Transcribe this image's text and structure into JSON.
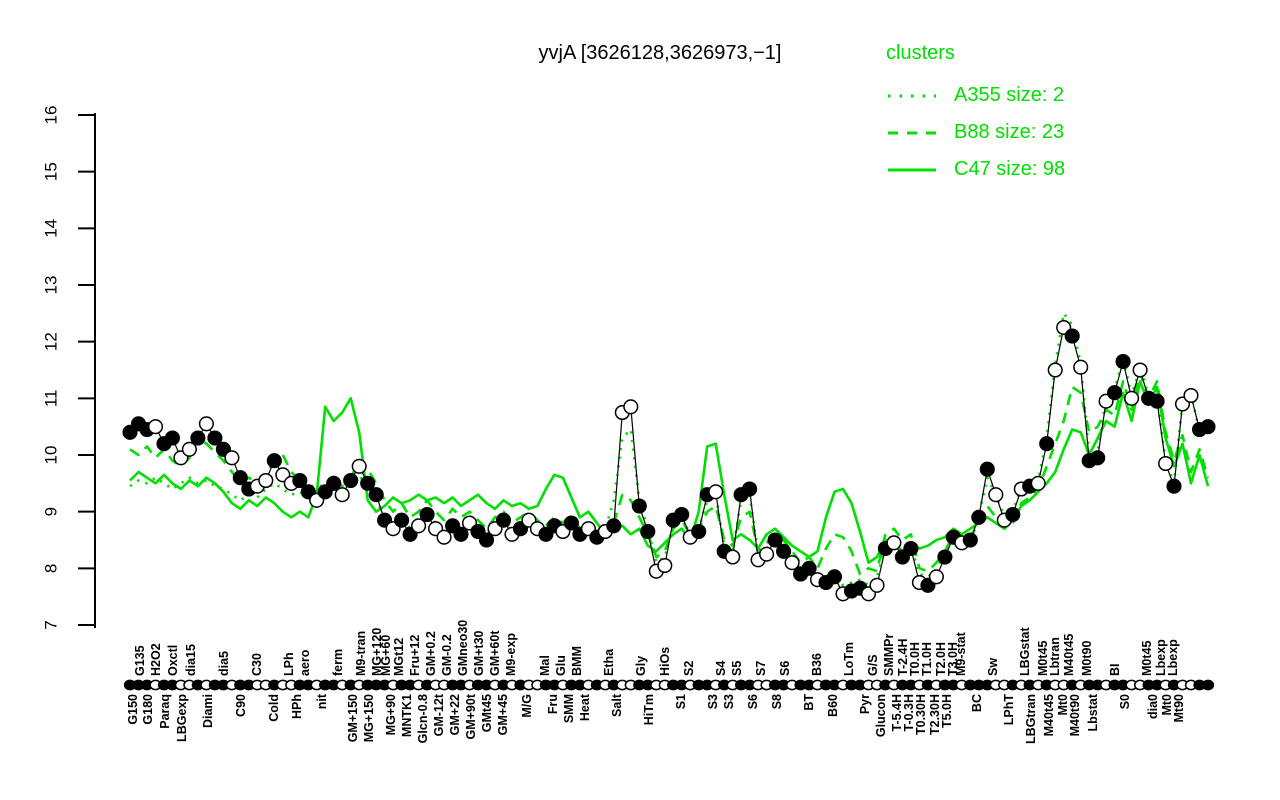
{
  "title": "yvjA [3626128,3626973,−1]",
  "legend": {
    "title": "clusters",
    "items": [
      {
        "label": "A355 size: 2",
        "line_style": "dotted"
      },
      {
        "label": "B88 size: 23",
        "line_style": "dashed"
      },
      {
        "label": "C47 size: 98",
        "line_style": "solid"
      }
    ]
  },
  "colors": {
    "cluster_green": "#00e000",
    "points_black": "#000000",
    "background": "#ffffff"
  },
  "chart_data": {
    "type": "line",
    "title": "yvjA [3626128,3626973,−1]",
    "xlabel": "",
    "ylabel": "",
    "ylim": [
      7,
      16
    ],
    "y_ticks": [
      7,
      8,
      9,
      10,
      11,
      12,
      13,
      14,
      15,
      16
    ],
    "grid": false,
    "legend_position": "top-right",
    "series": [
      {
        "name": "C47",
        "role": "cluster-mean",
        "color": "#00e000",
        "dash": "solid",
        "width": 2.6,
        "values": [
          9.55,
          9.7,
          9.6,
          9.5,
          9.65,
          9.5,
          9.4,
          9.55,
          9.45,
          9.6,
          9.5,
          9.35,
          9.15,
          9.05,
          9.2,
          9.1,
          9.25,
          9.15,
          9.0,
          8.9,
          9.0,
          8.9,
          9.3,
          10.85,
          10.6,
          10.75,
          11.0,
          10.4,
          9.2,
          9.0,
          9.1,
          9.25,
          9.15,
          9.2,
          9.3,
          9.2,
          9.25,
          9.15,
          9.25,
          9.1,
          9.2,
          9.3,
          9.15,
          9.05,
          9.2,
          9.1,
          9.15,
          9.05,
          9.1,
          9.4,
          9.65,
          9.6,
          9.25,
          8.9,
          9.0,
          8.8,
          8.6,
          8.7,
          8.75,
          8.6,
          8.7,
          8.4,
          8.3,
          8.45,
          8.6,
          8.7,
          8.5,
          9.0,
          10.15,
          10.2,
          9.3,
          8.5,
          8.6,
          8.5,
          8.35,
          8.6,
          8.7,
          8.55,
          8.4,
          8.3,
          8.2,
          8.3,
          8.9,
          9.35,
          9.4,
          9.15,
          8.65,
          8.1,
          8.2,
          8.5,
          8.45,
          8.3,
          8.45,
          8.35,
          8.4,
          8.5,
          8.55,
          8.7,
          8.6,
          8.7,
          8.8,
          8.9,
          8.8,
          8.7,
          8.85,
          9.1,
          9.2,
          9.35,
          9.5,
          9.7,
          10.1,
          10.45,
          10.4,
          10.0,
          10.3,
          10.6,
          10.5,
          11.1,
          10.6,
          11.3,
          10.9,
          11.2,
          10.3,
          9.8,
          10.2,
          9.5,
          10.0,
          9.45
        ]
      },
      {
        "name": "B88",
        "role": "cluster-mean",
        "color": "#00e000",
        "dash": "dashed",
        "width": 2.6,
        "values": [
          10.1,
          10.0,
          10.15,
          9.95,
          10.1,
          9.9,
          9.8,
          9.95,
          10.3,
          10.2,
          10.05,
          9.9,
          9.7,
          9.5,
          9.6,
          9.5,
          9.65,
          9.9,
          10.0,
          9.7,
          9.55,
          9.4,
          9.5,
          9.4,
          9.55,
          9.45,
          9.6,
          9.9,
          9.75,
          9.5,
          9.2,
          9.0,
          9.15,
          8.9,
          9.0,
          9.2,
          9.0,
          8.85,
          9.05,
          8.9,
          9.0,
          8.85,
          8.7,
          8.9,
          9.0,
          8.8,
          8.9,
          9.0,
          8.85,
          8.75,
          8.9,
          8.8,
          8.95,
          8.7,
          8.8,
          8.6,
          8.7,
          8.8,
          9.3,
          9.2,
          8.9,
          8.6,
          8.2,
          8.3,
          8.7,
          8.85,
          8.6,
          8.7,
          9.0,
          9.1,
          8.5,
          8.4,
          8.9,
          9.0,
          8.3,
          8.45,
          8.6,
          8.5,
          8.3,
          8.1,
          8.2,
          8.0,
          8.35,
          8.6,
          8.55,
          8.3,
          7.9,
          8.0,
          7.95,
          8.6,
          8.7,
          8.5,
          8.6,
          8.0,
          7.95,
          8.1,
          8.3,
          8.6,
          8.5,
          8.55,
          8.8,
          9.1,
          8.9,
          8.7,
          8.8,
          9.15,
          9.25,
          9.4,
          9.8,
          10.2,
          10.6,
          11.2,
          11.1,
          10.4,
          10.5,
          10.8,
          10.7,
          11.3,
          10.8,
          11.45,
          11.0,
          11.3,
          10.4,
          9.9,
          10.35,
          9.7,
          10.1,
          9.6
        ]
      },
      {
        "name": "A355",
        "role": "cluster-mean",
        "color": "#00e000",
        "dash": "dotted",
        "width": 2.6,
        "values": [
          9.45,
          9.55,
          9.5,
          9.6,
          9.5,
          9.4,
          9.5,
          9.6,
          9.5,
          9.55,
          9.45,
          9.4,
          9.3,
          9.2,
          9.3,
          9.25,
          9.4,
          9.5,
          9.4,
          9.3,
          9.35,
          9.25,
          9.3,
          9.5,
          9.6,
          9.45,
          9.55,
          9.65,
          9.4,
          9.2,
          8.9,
          8.8,
          8.9,
          8.7,
          8.8,
          8.95,
          8.8,
          8.7,
          8.85,
          8.7,
          8.8,
          8.7,
          8.6,
          8.75,
          8.85,
          8.7,
          8.75,
          8.85,
          8.75,
          8.7,
          8.8,
          8.7,
          8.85,
          8.7,
          8.75,
          8.6,
          8.7,
          9.2,
          10.3,
          10.45,
          9.2,
          8.7,
          8.1,
          8.2,
          8.8,
          8.9,
          8.6,
          8.7,
          9.2,
          9.3,
          8.4,
          8.3,
          9.2,
          9.3,
          8.25,
          8.35,
          8.55,
          8.4,
          8.2,
          8.0,
          8.1,
          7.9,
          7.85,
          7.95,
          7.7,
          7.75,
          7.8,
          7.7,
          7.85,
          8.4,
          8.5,
          8.3,
          8.4,
          7.9,
          7.85,
          7.95,
          8.3,
          8.6,
          8.5,
          8.55,
          8.95,
          9.6,
          9.3,
          8.9,
          9.0,
          9.45,
          9.5,
          9.55,
          10.3,
          11.6,
          12.5,
          12.3,
          11.6,
          10.0,
          10.05,
          11.0,
          11.15,
          11.7,
          11.05,
          11.55,
          11.05,
          11.0,
          9.9,
          9.5,
          10.95,
          11.1,
          10.4,
          10.3
        ]
      },
      {
        "name": "expression",
        "role": "gene-points",
        "color": "#000000",
        "dash": "solid",
        "width": 1.2,
        "points": true,
        "values": [
          10.4,
          10.55,
          10.45,
          10.5,
          10.2,
          10.3,
          9.95,
          10.1,
          10.3,
          10.55,
          10.3,
          10.1,
          9.95,
          9.6,
          9.4,
          9.45,
          9.55,
          9.9,
          9.65,
          9.5,
          9.55,
          9.35,
          9.2,
          9.35,
          9.5,
          9.3,
          9.55,
          9.8,
          9.5,
          9.3,
          8.85,
          8.7,
          8.85,
          8.6,
          8.75,
          8.95,
          8.7,
          8.55,
          8.75,
          8.6,
          8.8,
          8.65,
          8.5,
          8.7,
          8.85,
          8.6,
          8.7,
          8.85,
          8.7,
          8.6,
          8.75,
          8.65,
          8.8,
          8.6,
          8.7,
          8.55,
          8.65,
          8.75,
          10.75,
          10.85,
          9.1,
          8.65,
          7.95,
          8.05,
          8.85,
          8.95,
          8.55,
          8.65,
          9.3,
          9.35,
          8.3,
          8.2,
          9.3,
          9.4,
          8.15,
          8.25,
          8.5,
          8.3,
          8.1,
          7.9,
          8.0,
          7.8,
          7.75,
          7.85,
          7.55,
          7.6,
          7.65,
          7.55,
          7.7,
          8.35,
          8.45,
          8.2,
          8.35,
          7.75,
          7.7,
          7.85,
          8.2,
          8.55,
          8.45,
          8.5,
          8.9,
          9.75,
          9.3,
          8.85,
          8.95,
          9.4,
          9.45,
          9.5,
          10.2,
          11.5,
          12.25,
          12.1,
          11.55,
          9.9,
          9.95,
          10.95,
          11.1,
          11.65,
          11.0,
          11.5,
          11.0,
          10.95,
          9.85,
          9.45,
          10.9,
          11.05,
          10.45,
          10.5
        ]
      }
    ],
    "point_fills": [
      1,
      1,
      1,
      0,
      1,
      1,
      0,
      0,
      1,
      0,
      1,
      1,
      0,
      1,
      1,
      0,
      0,
      1,
      0,
      0,
      1,
      1,
      0,
      1,
      1,
      0,
      1,
      0,
      1,
      1,
      1,
      0,
      1,
      1,
      0,
      1,
      0,
      0,
      1,
      1,
      0,
      1,
      1,
      0,
      1,
      0,
      1,
      0,
      0,
      1,
      1,
      0,
      1,
      1,
      0,
      1,
      0,
      1,
      0,
      0,
      1,
      1,
      0,
      0,
      1,
      1,
      0,
      1,
      1,
      0,
      1,
      0,
      1,
      1,
      0,
      0,
      1,
      1,
      0,
      1,
      1,
      0,
      1,
      1,
      0,
      1,
      1,
      0,
      0,
      1,
      0,
      1,
      1,
      0,
      1,
      0,
      1,
      1,
      0,
      1,
      1,
      1,
      0,
      0,
      1,
      0,
      1,
      0,
      1,
      0,
      0,
      1,
      0,
      1,
      1,
      0,
      1,
      1,
      0,
      0,
      1,
      1,
      0,
      1,
      0,
      0,
      1,
      1
    ],
    "x_labels": [
      [
        "G150",
        "b",
        137
      ],
      [
        "G135",
        "t",
        144
      ],
      [
        "G180",
        "b",
        152
      ],
      [
        "H2O2",
        "t",
        160
      ],
      [
        "Paraq",
        "b",
        169
      ],
      [
        "Oxctl",
        "t",
        177
      ],
      [
        "LBGexp",
        "b",
        186
      ],
      [
        "dia15",
        "t",
        195
      ],
      [
        "Diami",
        "b",
        212
      ],
      [
        "dia5",
        "t",
        228
      ],
      [
        "C90",
        "b",
        245
      ],
      [
        "C30",
        "t",
        261
      ],
      [
        "Cold",
        "b",
        278
      ],
      [
        "LPh",
        "t",
        293
      ],
      [
        "HPh",
        "b",
        301
      ],
      [
        "aero",
        "t",
        309
      ],
      [
        "nit",
        "b",
        326
      ],
      [
        "ferm",
        "t",
        342
      ],
      [
        "GM+150",
        "b",
        357
      ],
      [
        "M9-tran",
        "t",
        365
      ],
      [
        "MG+150",
        "b",
        373
      ],
      [
        "MG+120",
        "t",
        381
      ],
      [
        "MG+60",
        "t",
        390
      ],
      [
        "MG+90",
        "b",
        395
      ],
      [
        "MGt12",
        "t",
        403
      ],
      [
        "MNTK1",
        "b",
        411
      ],
      [
        "Fru+12",
        "t",
        419
      ],
      [
        "Glcn-0.8",
        "b",
        427
      ],
      [
        "GM+0.2",
        "t",
        435
      ],
      [
        "GM-12t",
        "b",
        443
      ],
      [
        "GM-0.2",
        "t",
        451
      ],
      [
        "GM+22",
        "b",
        459
      ],
      [
        "GMneo30",
        "t",
        467
      ],
      [
        "GM+90t",
        "b",
        475
      ],
      [
        "GM+t30",
        "t",
        483
      ],
      [
        "GMt45",
        "b",
        491
      ],
      [
        "GM+60t",
        "t",
        499
      ],
      [
        "GM+45",
        "b",
        507
      ],
      [
        "M9-exp",
        "t",
        515
      ],
      [
        "M/G",
        "b",
        531
      ],
      [
        "Mal",
        "t",
        549
      ],
      [
        "Fru",
        "b",
        557
      ],
      [
        "Glu",
        "t",
        565
      ],
      [
        "SMM",
        "b",
        573
      ],
      [
        "BMM",
        "t",
        581
      ],
      [
        "Heat",
        "b",
        589
      ],
      [
        "Etha",
        "t",
        613
      ],
      [
        "Salt",
        "b",
        621
      ],
      [
        "Gly",
        "t",
        645
      ],
      [
        "HiTm",
        "b",
        653
      ],
      [
        "HiOs",
        "t",
        669
      ],
      [
        "S1",
        "b",
        685
      ],
      [
        "S2",
        "t",
        693
      ],
      [
        "S3",
        "b",
        717
      ],
      [
        "S4",
        "t",
        725
      ],
      [
        "S3",
        "b",
        733
      ],
      [
        "S5",
        "t",
        741
      ],
      [
        "S6",
        "b",
        757
      ],
      [
        "S7",
        "t",
        765
      ],
      [
        "S8",
        "b",
        781
      ],
      [
        "S6",
        "t",
        789
      ],
      [
        "BT",
        "b",
        813
      ],
      [
        "B36",
        "t",
        821
      ],
      [
        "B60",
        "b",
        837
      ],
      [
        "LoTm",
        "t",
        853
      ],
      [
        "Pyr",
        "b",
        869
      ],
      [
        "G/S",
        "t",
        877
      ],
      [
        "Glucon",
        "b",
        885
      ],
      [
        "SMMPr",
        "t",
        893
      ],
      [
        "T-5.4H",
        "b",
        901
      ],
      [
        "T-2.4H",
        "t",
        907
      ],
      [
        "T-0.3H",
        "b",
        913
      ],
      [
        "T0.0H",
        "t",
        919
      ],
      [
        "T0.30H",
        "b",
        925
      ],
      [
        "T1.0H",
        "t",
        931
      ],
      [
        "T2.30H",
        "b",
        939
      ],
      [
        "T2.0H",
        "t",
        945
      ],
      [
        "T5.0H",
        "b",
        951
      ],
      [
        "T3.0H",
        "t",
        957
      ],
      [
        "M9-stat",
        "t",
        965
      ],
      [
        "BC",
        "b",
        981
      ],
      [
        "Sw",
        "t",
        997
      ],
      [
        "LPhT",
        "b",
        1013
      ],
      [
        "LBGstat",
        "t",
        1029
      ],
      [
        "LBGtran",
        "b",
        1035
      ],
      [
        "M0t45",
        "t",
        1047
      ],
      [
        "M40t45",
        "b",
        1053
      ],
      [
        "Lbtran",
        "t",
        1059
      ],
      [
        "Mt0",
        "b",
        1067
      ],
      [
        "M40t45",
        "t",
        1073
      ],
      [
        "M40t90",
        "b",
        1079
      ],
      [
        "M0t90",
        "t",
        1091
      ],
      [
        "Lbstat",
        "b",
        1097
      ],
      [
        "BI",
        "t",
        1119
      ],
      [
        "S0",
        "b",
        1129
      ],
      [
        "M0t45",
        "t",
        1151
      ],
      [
        "dia0",
        "b",
        1157
      ],
      [
        "Lbexp",
        "t",
        1165
      ],
      [
        "Mt0",
        "b",
        1171
      ],
      [
        "Lbexp",
        "t",
        1177
      ],
      [
        "Mt90",
        "b",
        1183
      ]
    ]
  }
}
